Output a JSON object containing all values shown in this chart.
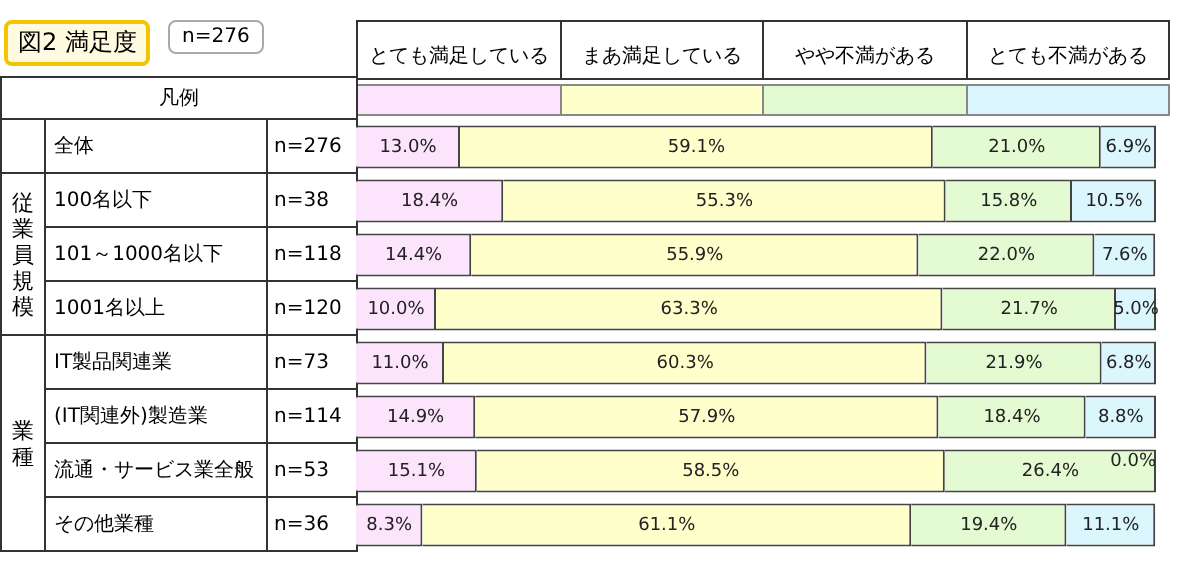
{
  "chart_data": {
    "type": "bar",
    "orientation": "horizontal",
    "stacked": true,
    "title": "図2 満足度",
    "subtitle": "n=276",
    "categories": [
      "全体",
      "100名以下",
      "101～1000名以下",
      "1001名以上",
      "IT製品関連業",
      "(IT関連外)製造業",
      "流通・サービス業全般",
      "その他業種"
    ],
    "series": [
      {
        "name": "とても満足している",
        "color": "#fce4fc",
        "values": [
          13.0,
          18.4,
          14.4,
          10.0,
          11.0,
          14.9,
          15.1,
          8.3
        ],
        "value_labels": [
          "13.0%",
          "18.4%",
          "14.4%",
          "10.0%",
          "11.0%",
          "14.9%",
          "15.1%",
          "8.3%"
        ]
      },
      {
        "name": "まあ満足している",
        "color": "#ffffcc",
        "values": [
          59.1,
          55.3,
          55.9,
          63.3,
          60.3,
          57.9,
          58.5,
          61.1
        ],
        "value_labels": [
          "59.1%",
          "55.3%",
          "55.9%",
          "63.3%",
          "60.3%",
          "57.9%",
          "58.5%",
          "61.1%"
        ]
      },
      {
        "name": "やや不満がある",
        "color": "#e4fad2",
        "values": [
          21.0,
          15.8,
          22.0,
          21.7,
          21.9,
          18.4,
          26.4,
          19.4
        ],
        "value_labels": [
          "21.0%",
          "15.8%",
          "22.0%",
          "21.7%",
          "21.9%",
          "18.4%",
          "26.4%",
          "19.4%"
        ]
      },
      {
        "name": "とても不満がある",
        "color": "#dcf6fe",
        "values": [
          6.9,
          10.5,
          7.6,
          5.0,
          6.8,
          8.8,
          0.0,
          11.1
        ],
        "value_labels": [
          "6.9%",
          "10.5%",
          "7.6%",
          "5.0%",
          "6.8%",
          "8.8%",
          "0.0%",
          "11.1%"
        ]
      }
    ],
    "legend": "top",
    "tick_labels": "y",
    "annotations": [
      "凡例",
      "従業員規模",
      "業種",
      "n=276",
      "n=38",
      "n=118",
      "n=120",
      "n=73",
      "n=114",
      "n=53",
      "n=36"
    ]
  }
}
